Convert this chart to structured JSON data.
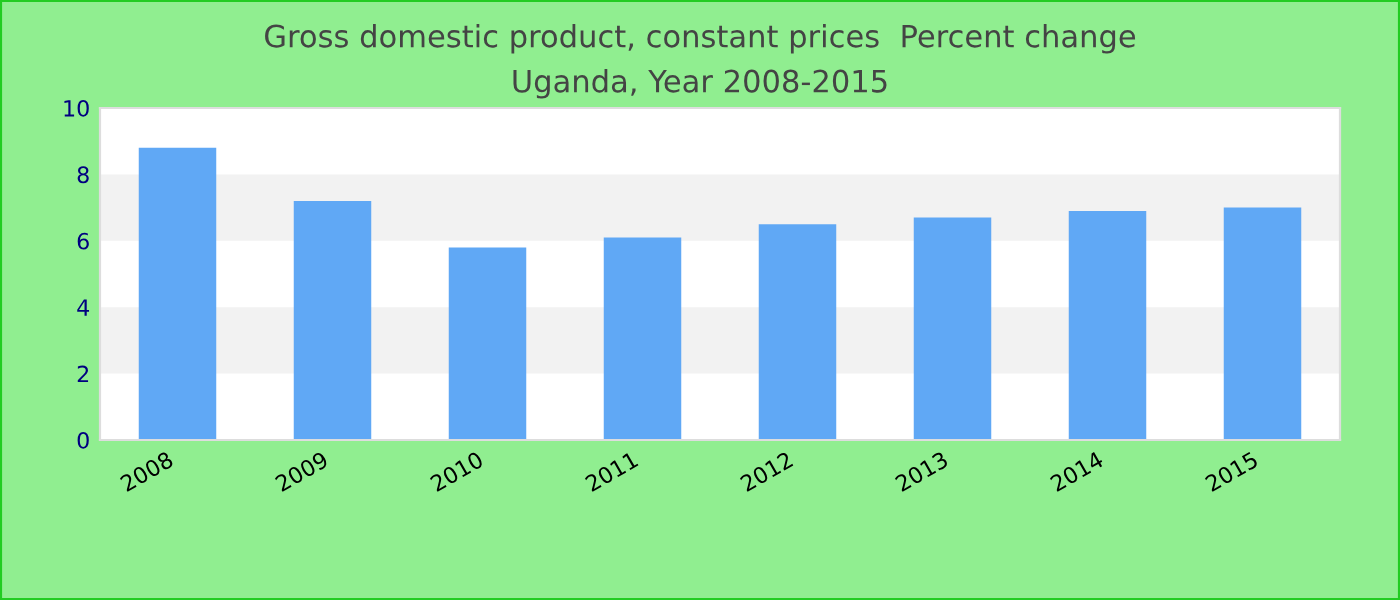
{
  "chart_data": {
    "type": "bar",
    "title": "Gross domestic product, constant prices  Percent change",
    "subtitle": "Uganda, Year 2008-2015",
    "categories": [
      "2008",
      "2009",
      "2010",
      "2011",
      "2012",
      "2013",
      "2014",
      "2015"
    ],
    "values": [
      8.8,
      7.2,
      5.8,
      6.1,
      6.5,
      6.7,
      6.9,
      7.0
    ],
    "color": "#60a8f5",
    "ylim": [
      0,
      10
    ],
    "yticks": [
      0,
      2,
      4,
      6,
      8,
      10
    ],
    "bands": [
      {
        "axis": "y",
        "from": 2,
        "to": 4,
        "color": "#f2f2f2"
      },
      {
        "axis": "y",
        "from": 6,
        "to": 8,
        "color": "#f2f2f2"
      }
    ],
    "grid": false,
    "legend": false
  }
}
